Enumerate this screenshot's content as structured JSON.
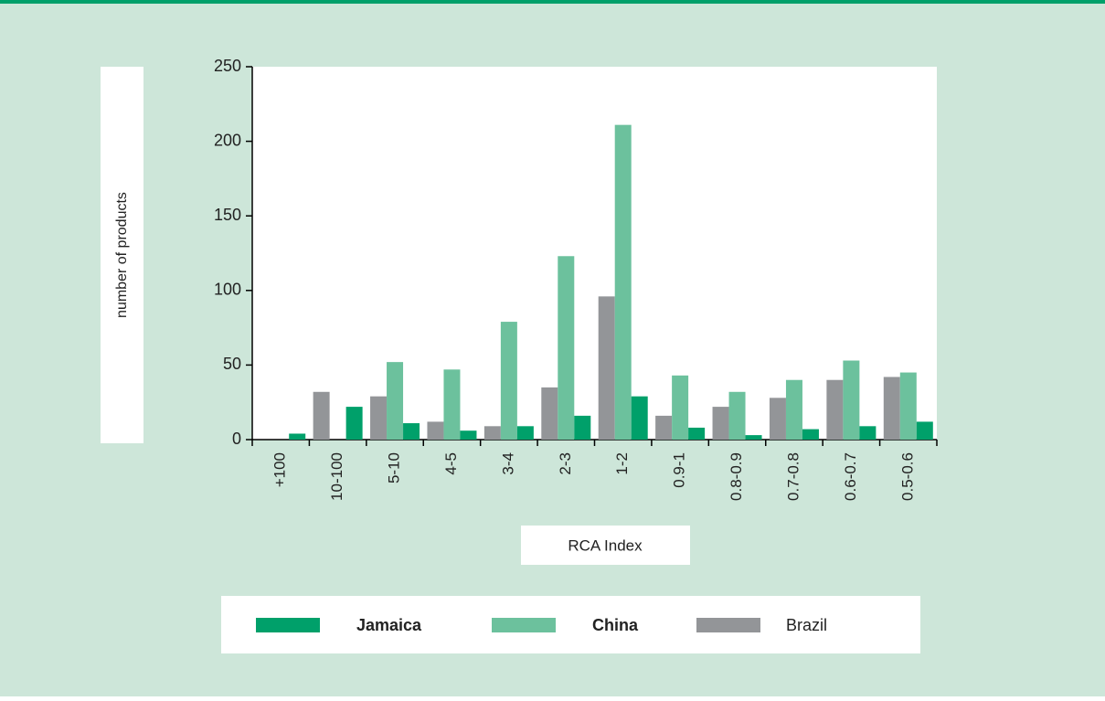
{
  "chart_data": {
    "type": "bar",
    "x_label": "RCA Index",
    "y_label": "number of products",
    "categories": [
      "+100",
      "10-100",
      "5-10",
      "4-5",
      "3-4",
      "2-3",
      "1-2",
      "0.9-1",
      "0.8-0.9",
      "0.7-0.8",
      "0.6-0.7",
      "0.5-0.6"
    ],
    "series": [
      {
        "name": "Jamaica",
        "color": "#00a06a",
        "values": [
          4,
          22,
          11,
          6,
          9,
          16,
          29,
          8,
          3,
          7,
          9,
          12
        ]
      },
      {
        "name": "China",
        "color": "#6cc19d",
        "values": [
          0,
          0,
          52,
          47,
          79,
          123,
          211,
          43,
          32,
          40,
          53,
          45
        ]
      },
      {
        "name": "Brazil",
        "color": "#939598",
        "values": [
          0,
          32,
          29,
          12,
          9,
          35,
          96,
          16,
          22,
          28,
          40,
          42
        ]
      }
    ],
    "ylim": [
      0,
      250
    ],
    "yticks": [
      0,
      50,
      100,
      150,
      200,
      250
    ],
    "grid": false
  }
}
